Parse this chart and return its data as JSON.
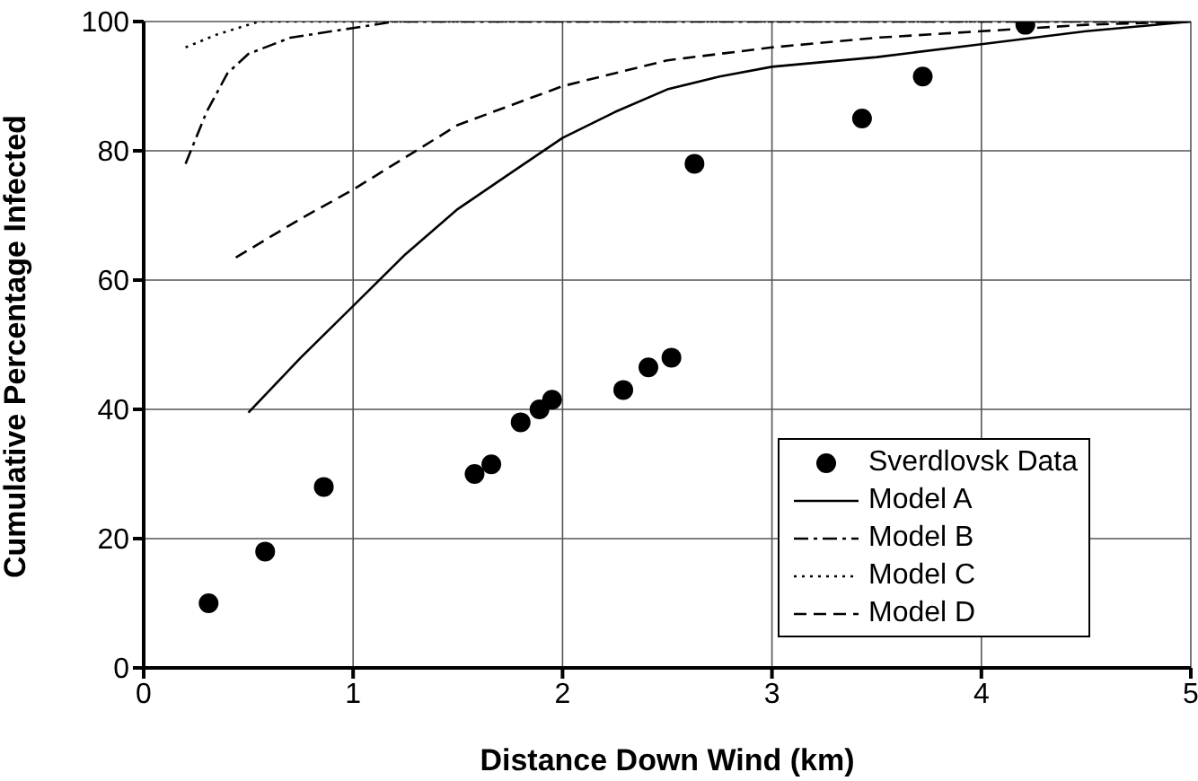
{
  "chart_data": {
    "type": "line",
    "xlabel": "Distance Down Wind (km)",
    "ylabel": "Cumulative Percentage Infected",
    "xlim": [
      0,
      5
    ],
    "xticks": [
      0,
      1,
      2,
      3,
      4,
      5
    ],
    "ylim": [
      0,
      100
    ],
    "yticks": [
      0,
      20,
      40,
      60,
      80,
      100
    ],
    "grid": true,
    "legend": "bottom right",
    "series": [
      {
        "name": "Sverdlovsk Data",
        "type": "scatter",
        "marker": "circle",
        "color": "#000000",
        "x": [
          0.31,
          0.58,
          0.86,
          1.58,
          1.66,
          1.8,
          1.89,
          1.95,
          2.29,
          2.41,
          2.52,
          2.63,
          3.43,
          3.72,
          4.21
        ],
        "values": [
          10,
          18,
          28,
          30,
          31.5,
          38,
          40,
          41.5,
          43,
          46.5,
          48,
          78,
          85,
          91.5,
          99.5
        ]
      },
      {
        "name": "Model A",
        "type": "line",
        "line_style": "solid",
        "color": "#000000",
        "x": [
          0.5,
          0.75,
          1,
          1.25,
          1.5,
          1.75,
          2,
          2.25,
          2.5,
          2.75,
          3,
          3.5,
          4,
          4.5,
          5
        ],
        "values": [
          39.5,
          48,
          56,
          64,
          71,
          76.5,
          82,
          86,
          89.5,
          91.5,
          93,
          94.5,
          96.5,
          98.5,
          100
        ]
      },
      {
        "name": "Model B",
        "type": "line",
        "line_style": "dashdot",
        "color": "#000000",
        "x": [
          0.2,
          0.3,
          0.4,
          0.5,
          0.7,
          1,
          1.2,
          5
        ],
        "values": [
          78,
          86,
          92,
          95,
          97.5,
          99,
          100,
          100
        ]
      },
      {
        "name": "Model C",
        "type": "line",
        "line_style": "dotted",
        "color": "#000000",
        "x": [
          0.2,
          0.35,
          0.55,
          5
        ],
        "values": [
          96,
          98,
          100,
          100
        ]
      },
      {
        "name": "Model D",
        "type": "line",
        "line_style": "dashed",
        "color": "#000000",
        "x": [
          0.44,
          0.75,
          1,
          1.25,
          1.5,
          1.75,
          2,
          2.5,
          3,
          3.5,
          4,
          4.5,
          5
        ],
        "values": [
          63.5,
          69.5,
          74,
          79,
          84,
          87,
          90,
          94,
          96,
          97.5,
          98.5,
          99.5,
          100
        ]
      }
    ]
  }
}
